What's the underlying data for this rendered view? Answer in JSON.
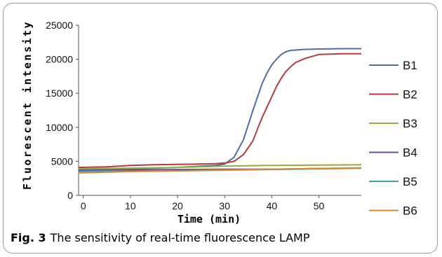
{
  "caption": {
    "label": "Fig. 3",
    "text": "The sensitivity of real-time fluorescence LAMP"
  },
  "chart_data": {
    "type": "line",
    "xlabel": "Time (min)",
    "ylabel": "Fluorescent intensity",
    "xlim": [
      -1,
      59
    ],
    "ylim": [
      0,
      25000
    ],
    "xticks": [
      0,
      10,
      20,
      30,
      40,
      50
    ],
    "yticks": [
      0,
      5000,
      10000,
      15000,
      20000,
      25000
    ],
    "grid": false,
    "legend": "right",
    "series": [
      {
        "name": "B1",
        "color": "#4a6fa5",
        "x": [
          -1,
          5,
          10,
          15,
          20,
          25,
          28,
          30,
          32,
          34,
          36,
          37,
          38,
          39,
          40,
          41,
          42,
          43,
          44,
          45,
          47,
          50,
          55,
          59
        ],
        "y": [
          3800,
          3850,
          3900,
          4000,
          4100,
          4300,
          4400,
          4600,
          5600,
          8200,
          12500,
          14500,
          16500,
          18000,
          19200,
          20000,
          20700,
          21100,
          21300,
          21350,
          21450,
          21500,
          21550,
          21550
        ]
      },
      {
        "name": "B2",
        "color": "#b23b3b",
        "x": [
          -1,
          5,
          10,
          15,
          20,
          25,
          28,
          30,
          32,
          34,
          36,
          37,
          38,
          39,
          40,
          41,
          42,
          43,
          44,
          45,
          47,
          50,
          55,
          59
        ],
        "y": [
          4100,
          4200,
          4400,
          4500,
          4550,
          4600,
          4650,
          4750,
          5000,
          6000,
          8000,
          9800,
          11500,
          13000,
          14500,
          16000,
          17200,
          18200,
          18900,
          19500,
          20100,
          20700,
          20800,
          20800
        ]
      },
      {
        "name": "B3",
        "color": "#8fae3a",
        "x": [
          -1,
          10,
          20,
          30,
          40,
          50,
          59
        ],
        "y": [
          3900,
          4000,
          4100,
          4300,
          4400,
          4450,
          4500
        ]
      },
      {
        "name": "B4",
        "color": "#6b4c9a",
        "x": [
          -1,
          10,
          20,
          30,
          40,
          50,
          59
        ],
        "y": [
          3700,
          3750,
          3800,
          3850,
          3850,
          3950,
          4000
        ]
      },
      {
        "name": "B5",
        "color": "#3aa1b8",
        "x": [
          -1,
          10,
          20,
          30,
          40,
          50,
          59
        ],
        "y": [
          3500,
          3550,
          3600,
          3700,
          3800,
          3900,
          4000
        ]
      },
      {
        "name": "B6",
        "color": "#e0862f",
        "x": [
          -1,
          10,
          20,
          30,
          40,
          50,
          59
        ],
        "y": [
          3300,
          3500,
          3600,
          3750,
          3850,
          3950,
          4050
        ]
      }
    ]
  }
}
